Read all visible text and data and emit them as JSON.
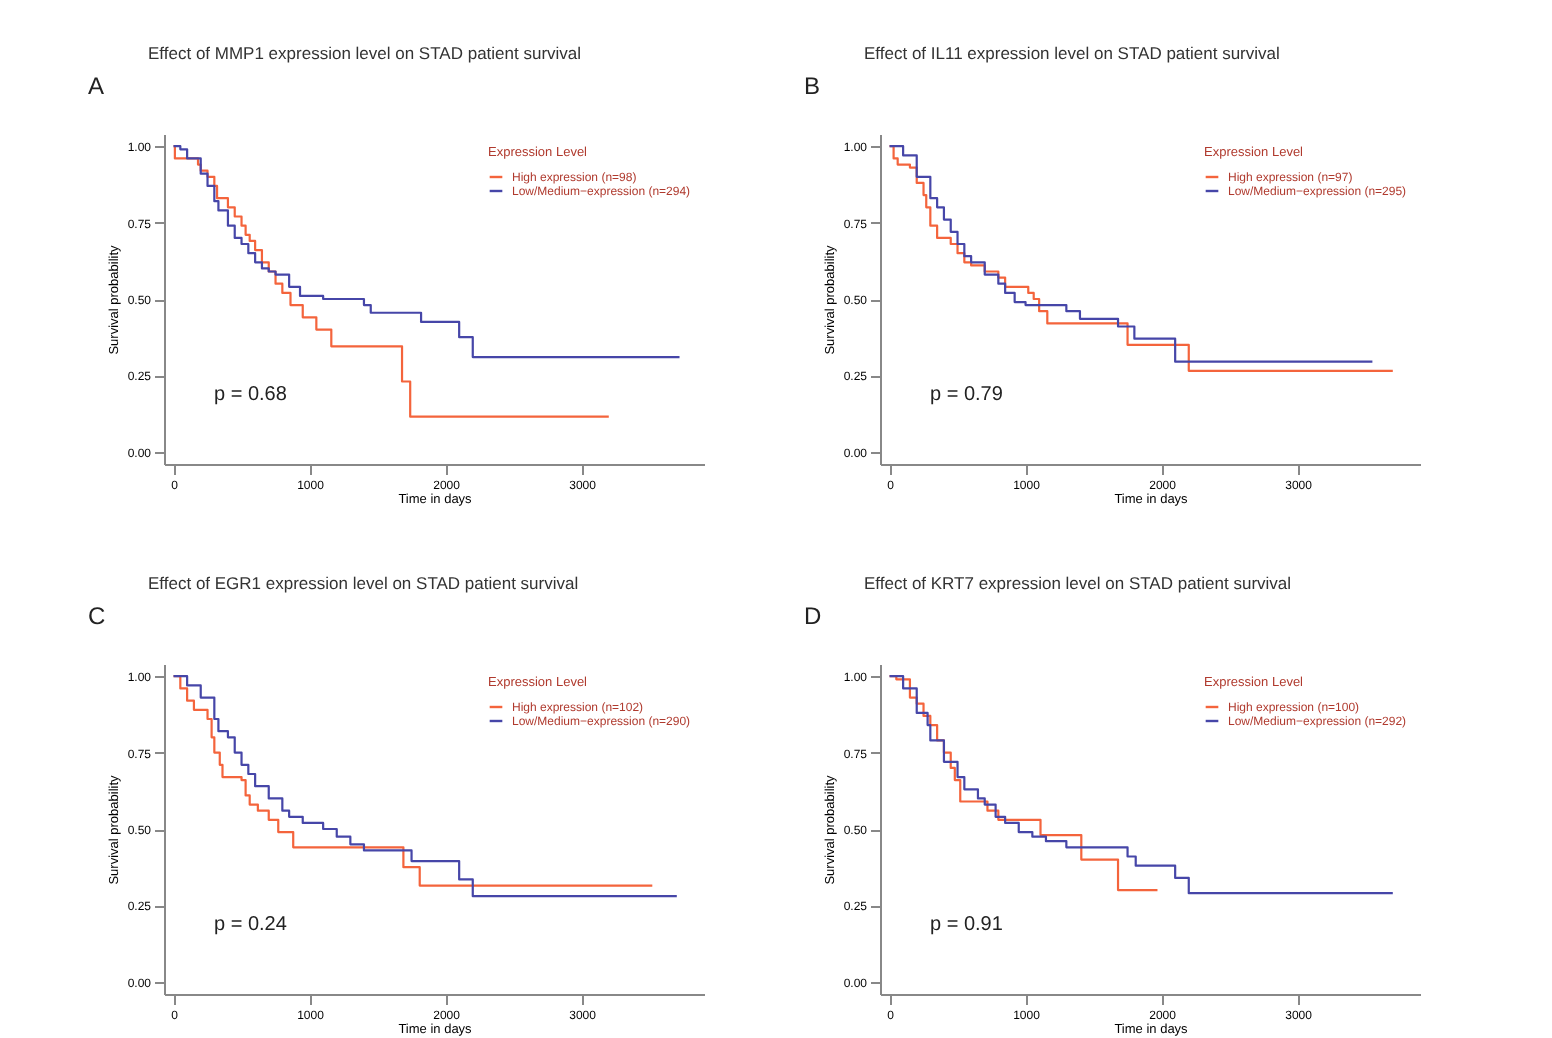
{
  "chart_data": [
    {
      "type": "step",
      "title": "Effect of MMP1 expression level on STAD patient survival",
      "xlabel": "Time in days",
      "ylabel": "Survival probability",
      "legend_title": "Expression Level",
      "legend": "top right",
      "annotations": [
        "A",
        "p = 0.68"
      ],
      "xlim": [
        -70,
        3900
      ],
      "xticks": [
        0,
        1000,
        2000,
        3000
      ],
      "ylim": [
        -0.04,
        1.04
      ],
      "yticks": [
        {
          "value": 0,
          "label": "0.00"
        },
        {
          "value": 0.25,
          "label": "0.25"
        },
        {
          "value": 0.5,
          "label": "0.50"
        },
        {
          "value": 0.75,
          "label": "0.75"
        },
        {
          "value": 1,
          "label": "1.00"
        }
      ],
      "series": [
        {
          "name": "High expression (n=98)",
          "color": "#f4643c",
          "x": [
            0,
            10,
            100,
            180,
            200,
            250,
            300,
            320,
            400,
            450,
            500,
            530,
            560,
            600,
            650,
            700,
            750,
            800,
            860,
            950,
            1050,
            1160,
            1680,
            1740,
            3200
          ],
          "values": [
            1.0,
            0.96,
            0.96,
            0.94,
            0.92,
            0.9,
            0.87,
            0.83,
            0.8,
            0.77,
            0.74,
            0.71,
            0.69,
            0.66,
            0.62,
            0.59,
            0.55,
            0.52,
            0.48,
            0.44,
            0.4,
            0.345,
            0.23,
            0.115,
            0.115
          ]
        },
        {
          "name": "Low/Medium−expression (n=294)",
          "color": "#4646a8",
          "x": [
            0,
            50,
            100,
            200,
            250,
            300,
            330,
            400,
            450,
            500,
            550,
            600,
            650,
            700,
            750,
            850,
            930,
            1100,
            1400,
            1450,
            1820,
            2100,
            2200,
            3720
          ],
          "values": [
            1.0,
            0.99,
            0.96,
            0.91,
            0.87,
            0.82,
            0.79,
            0.74,
            0.7,
            0.68,
            0.65,
            0.62,
            0.6,
            0.59,
            0.58,
            0.54,
            0.51,
            0.5,
            0.48,
            0.455,
            0.425,
            0.375,
            0.31,
            0.31
          ]
        }
      ]
    },
    {
      "type": "step",
      "title": "Effect of IL11 expression level on STAD patient survival",
      "xlabel": "Time in days",
      "ylabel": "Survival probability",
      "legend_title": "Expression Level",
      "legend": "top right",
      "annotations": [
        "B",
        "p = 0.79"
      ],
      "xlim": [
        -70,
        3900
      ],
      "xticks": [
        0,
        1000,
        2000,
        3000
      ],
      "ylim": [
        -0.04,
        1.04
      ],
      "yticks": [
        {
          "value": 0,
          "label": "0.00"
        },
        {
          "value": 0.25,
          "label": "0.25"
        },
        {
          "value": 0.5,
          "label": "0.50"
        },
        {
          "value": 0.75,
          "label": "0.75"
        },
        {
          "value": 1,
          "label": "1.00"
        }
      ],
      "series": [
        {
          "name": "High expression (n=97)",
          "color": "#f4643c",
          "x": [
            0,
            30,
            60,
            150,
            200,
            250,
            270,
            300,
            350,
            450,
            500,
            550,
            600,
            700,
            800,
            850,
            1020,
            1060,
            1100,
            1160,
            1750,
            2200,
            3700
          ],
          "values": [
            1.0,
            0.96,
            0.94,
            0.93,
            0.88,
            0.84,
            0.8,
            0.74,
            0.7,
            0.68,
            0.65,
            0.62,
            0.61,
            0.59,
            0.57,
            0.54,
            0.52,
            0.5,
            0.46,
            0.42,
            0.35,
            0.265,
            0.265
          ]
        },
        {
          "name": "Low/Medium−expression (n=295)",
          "color": "#4646a8",
          "x": [
            0,
            100,
            200,
            300,
            350,
            400,
            450,
            500,
            550,
            600,
            700,
            800,
            850,
            920,
            1000,
            1300,
            1400,
            1680,
            1800,
            2100,
            3550
          ],
          "values": [
            1.0,
            0.97,
            0.9,
            0.83,
            0.8,
            0.76,
            0.72,
            0.68,
            0.64,
            0.62,
            0.58,
            0.55,
            0.52,
            0.49,
            0.48,
            0.46,
            0.435,
            0.41,
            0.37,
            0.295,
            0.295
          ]
        }
      ]
    },
    {
      "type": "step",
      "title": "Effect of EGR1 expression level on STAD patient survival",
      "xlabel": "Time in days",
      "ylabel": "Survival probability",
      "legend_title": "Expression Level",
      "legend": "top right",
      "annotations": [
        "C",
        "p = 0.24"
      ],
      "xlim": [
        -70,
        3900
      ],
      "xticks": [
        0,
        1000,
        2000,
        3000
      ],
      "ylim": [
        -0.04,
        1.04
      ],
      "yticks": [
        {
          "value": 0,
          "label": "0.00"
        },
        {
          "value": 0.25,
          "label": "0.25"
        },
        {
          "value": 0.5,
          "label": "0.50"
        },
        {
          "value": 0.75,
          "label": "0.75"
        },
        {
          "value": 1,
          "label": "1.00"
        }
      ],
      "series": [
        {
          "name": "High expression (n=102)",
          "color": "#f4643c",
          "x": [
            0,
            50,
            100,
            150,
            250,
            280,
            300,
            340,
            360,
            500,
            530,
            560,
            620,
            700,
            770,
            880,
            1690,
            1810,
            3520
          ],
          "values": [
            1.0,
            0.96,
            0.92,
            0.89,
            0.86,
            0.8,
            0.75,
            0.71,
            0.67,
            0.66,
            0.61,
            0.58,
            0.56,
            0.53,
            0.49,
            0.44,
            0.375,
            0.315,
            0.315
          ]
        },
        {
          "name": "Low/Medium−expression (n=290)",
          "color": "#4646a8",
          "x": [
            0,
            100,
            200,
            300,
            330,
            400,
            450,
            500,
            550,
            600,
            700,
            800,
            850,
            950,
            1100,
            1200,
            1300,
            1400,
            1750,
            2100,
            2200,
            3700
          ],
          "values": [
            1.0,
            0.97,
            0.93,
            0.86,
            0.82,
            0.8,
            0.75,
            0.71,
            0.68,
            0.64,
            0.6,
            0.56,
            0.54,
            0.52,
            0.5,
            0.475,
            0.45,
            0.43,
            0.395,
            0.335,
            0.28,
            0.28
          ]
        }
      ]
    },
    {
      "type": "step",
      "title": "Effect of KRT7 expression level on STAD patient survival",
      "xlabel": "Time in days",
      "ylabel": "Survival probability",
      "legend_title": "Expression Level",
      "legend": "top right",
      "annotations": [
        "D",
        "p = 0.91"
      ],
      "xlim": [
        -70,
        3900
      ],
      "xticks": [
        0,
        1000,
        2000,
        3000
      ],
      "ylim": [
        -0.04,
        1.04
      ],
      "yticks": [
        {
          "value": 0,
          "label": "0.00"
        },
        {
          "value": 0.25,
          "label": "0.25"
        },
        {
          "value": 0.5,
          "label": "0.50"
        },
        {
          "value": 0.75,
          "label": "0.75"
        },
        {
          "value": 1,
          "label": "1.00"
        }
      ],
      "series": [
        {
          "name": "High expression (n=100)",
          "color": "#f4643c",
          "x": [
            0,
            50,
            150,
            200,
            250,
            300,
            350,
            400,
            450,
            480,
            520,
            720,
            800,
            1110,
            1410,
            1680,
            1970
          ],
          "values": [
            1.0,
            0.99,
            0.93,
            0.91,
            0.87,
            0.84,
            0.79,
            0.75,
            0.7,
            0.66,
            0.59,
            0.56,
            0.53,
            0.48,
            0.4,
            0.3,
            0.3
          ]
        },
        {
          "name": "Low/Medium−expression (n=292)",
          "color": "#4646a8",
          "x": [
            0,
            100,
            200,
            280,
            300,
            400,
            500,
            550,
            650,
            700,
            780,
            850,
            950,
            1050,
            1150,
            1300,
            1750,
            1810,
            2100,
            2200,
            3700
          ],
          "values": [
            1.0,
            0.96,
            0.88,
            0.84,
            0.79,
            0.72,
            0.67,
            0.63,
            0.6,
            0.58,
            0.54,
            0.52,
            0.49,
            0.475,
            0.46,
            0.44,
            0.41,
            0.38,
            0.34,
            0.29,
            0.29
          ]
        }
      ]
    }
  ]
}
